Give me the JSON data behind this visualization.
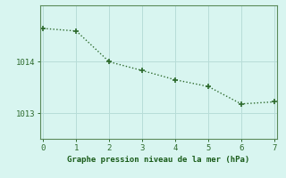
{
  "x": [
    0,
    1,
    2,
    3,
    4,
    5,
    6,
    7
  ],
  "y": [
    1014.65,
    1014.6,
    1014.0,
    1013.83,
    1013.65,
    1013.52,
    1013.18,
    1013.22
  ],
  "line_color": "#2d6a2d",
  "marker_color": "#2d6a2d",
  "bg_color": "#d8f5f0",
  "grid_color": "#b8ddd8",
  "xlabel": "Graphe pression niveau de la mer (hPa)",
  "xlabel_color": "#1a5c1a",
  "tick_color": "#2d6a2d",
  "spine_color": "#5a8a5a",
  "ylim": [
    1012.5,
    1015.1
  ],
  "xlim": [
    -0.1,
    7.1
  ],
  "yticks": [
    1013,
    1014
  ],
  "xticks": [
    0,
    1,
    2,
    3,
    4,
    5,
    6,
    7
  ],
  "figsize": [
    3.2,
    2.0
  ],
  "dpi": 100
}
